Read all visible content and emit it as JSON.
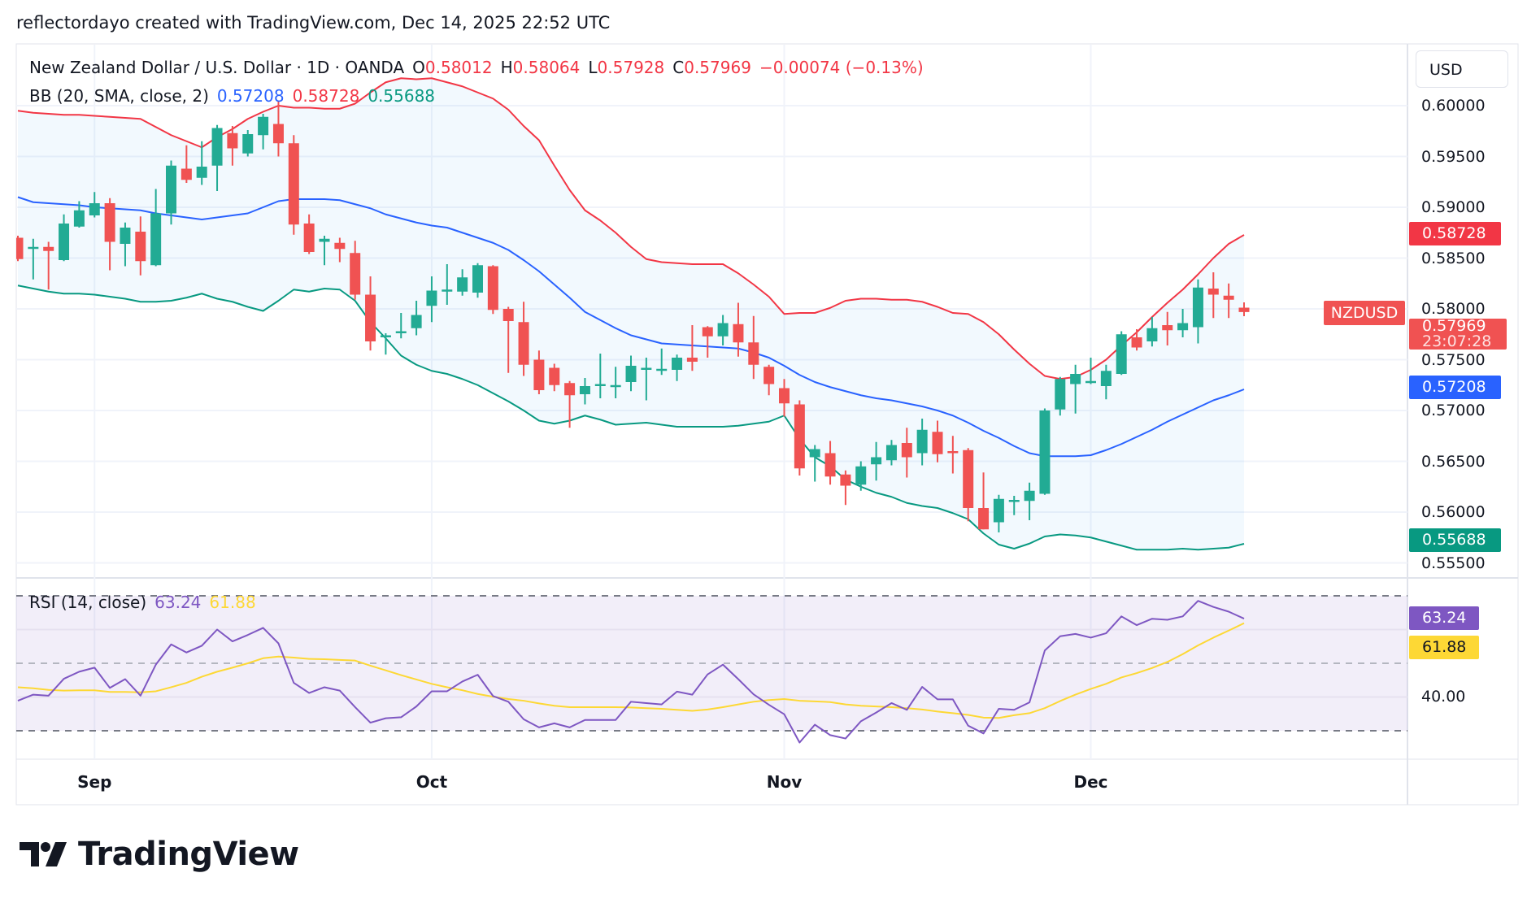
{
  "caption": "reflectordayo created with TradingView.com, Dec 14, 2025 22:52 UTC",
  "legend": {
    "symbol": "New Zealand Dollar / U.S. Dollar · 1D · OANDA",
    "o_label": "O",
    "o": "0.58012",
    "h_label": "H",
    "h": "0.58064",
    "l_label": "L",
    "l": "0.57928",
    "c_label": "C",
    "c": "0.57969",
    "change": "−0.00074 (−0.13%)",
    "bb_title": "BB (20, SMA, close, 2)",
    "bb_basis": "0.57208",
    "bb_upper": "0.58728",
    "bb_lower": "0.55688",
    "rsi_title": "RSI (14, close)",
    "rsi_value": "63.24",
    "rsi_ma": "61.88"
  },
  "price_axis": {
    "currency": "USD",
    "ticks": [
      "0.60000",
      "0.59500",
      "0.59000",
      "0.58500",
      "0.58000",
      "0.57500",
      "0.57000",
      "0.56500",
      "0.56000",
      "0.55500"
    ],
    "symbol_tag": "NZDUSD",
    "last_price": "0.57969",
    "countdown": "23:07:28",
    "upper_badge": "0.58728",
    "basis_badge": "0.57208",
    "lower_badge": "0.55688"
  },
  "rsi_axis": {
    "ticks": [
      "40.00"
    ],
    "rsi_badge": "63.24",
    "ma_badge": "61.88"
  },
  "time_axis": [
    {
      "label": "Sep",
      "bar": 5
    },
    {
      "label": "Oct",
      "bar": 27
    },
    {
      "label": "Nov",
      "bar": 50
    },
    {
      "label": "Dec",
      "bar": 70
    }
  ],
  "brand": "TradingView",
  "colors": {
    "up": "#22ab94",
    "down": "#f05252",
    "bb_upper": "#f23645",
    "bb_basis": "#2962ff",
    "bb_lower": "#089981",
    "rsi": "#7e57c2",
    "rsi_ma": "#fdd835"
  },
  "chart_data": [
    {
      "type": "candlestick",
      "title": "New Zealand Dollar / U.S. Dollar · 1D · OANDA",
      "ylim": [
        0.553,
        0.6035
      ],
      "grid": true,
      "ohlc": [
        [
          0.587,
          0.5872,
          0.5847,
          0.5849
        ],
        [
          0.5859,
          0.5869,
          0.5829,
          0.5861
        ],
        [
          0.5861,
          0.5866,
          0.5819,
          0.5857
        ],
        [
          0.5848,
          0.5893,
          0.5847,
          0.5884
        ],
        [
          0.5881,
          0.5906,
          0.588,
          0.5897
        ],
        [
          0.5892,
          0.5915,
          0.589,
          0.5904
        ],
        [
          0.5904,
          0.5909,
          0.5838,
          0.5866
        ],
        [
          0.5864,
          0.5885,
          0.5842,
          0.588
        ],
        [
          0.5876,
          0.5891,
          0.5833,
          0.5847
        ],
        [
          0.5843,
          0.5918,
          0.5842,
          0.5894
        ],
        [
          0.5894,
          0.5946,
          0.5883,
          0.5941
        ],
        [
          0.5938,
          0.5961,
          0.5924,
          0.5927
        ],
        [
          0.5929,
          0.5965,
          0.5922,
          0.594
        ],
        [
          0.5941,
          0.5981,
          0.5916,
          0.5978
        ],
        [
          0.5973,
          0.598,
          0.5941,
          0.5958
        ],
        [
          0.5953,
          0.5976,
          0.595,
          0.5972
        ],
        [
          0.5971,
          0.5992,
          0.5957,
          0.5989
        ],
        [
          0.5982,
          0.6005,
          0.595,
          0.5963
        ],
        [
          0.5963,
          0.5971,
          0.5873,
          0.5883
        ],
        [
          0.5884,
          0.5893,
          0.5854,
          0.5856
        ],
        [
          0.5866,
          0.5872,
          0.5843,
          0.5869
        ],
        [
          0.5865,
          0.587,
          0.5846,
          0.5859
        ],
        [
          0.5855,
          0.5867,
          0.5809,
          0.5814
        ],
        [
          0.5814,
          0.5832,
          0.5759,
          0.5768
        ],
        [
          0.5772,
          0.5776,
          0.5755,
          0.5774
        ],
        [
          0.5776,
          0.5796,
          0.5771,
          0.5778
        ],
        [
          0.5781,
          0.5808,
          0.5774,
          0.5794
        ],
        [
          0.5803,
          0.5832,
          0.5787,
          0.5818
        ],
        [
          0.5817,
          0.5844,
          0.5804,
          0.5819
        ],
        [
          0.5817,
          0.5839,
          0.5813,
          0.5831
        ],
        [
          0.5816,
          0.5845,
          0.5811,
          0.5843
        ],
        [
          0.5842,
          0.5843,
          0.5795,
          0.5799
        ],
        [
          0.58,
          0.5802,
          0.5737,
          0.5788
        ],
        [
          0.5787,
          0.5807,
          0.5734,
          0.5745
        ],
        [
          0.575,
          0.5759,
          0.5716,
          0.572
        ],
        [
          0.5742,
          0.5746,
          0.5719,
          0.5725
        ],
        [
          0.5727,
          0.5729,
          0.5683,
          0.5715
        ],
        [
          0.5716,
          0.5732,
          0.5706,
          0.5724
        ],
        [
          0.5724,
          0.5756,
          0.5712,
          0.5726
        ],
        [
          0.5723,
          0.5743,
          0.5712,
          0.5725
        ],
        [
          0.5728,
          0.5754,
          0.5719,
          0.5744
        ],
        [
          0.574,
          0.5752,
          0.571,
          0.5742
        ],
        [
          0.5739,
          0.5761,
          0.5735,
          0.5741
        ],
        [
          0.574,
          0.5755,
          0.5729,
          0.5752
        ],
        [
          0.5752,
          0.5784,
          0.5739,
          0.5748
        ],
        [
          0.5782,
          0.5783,
          0.5752,
          0.5773
        ],
        [
          0.5773,
          0.5794,
          0.5764,
          0.5786
        ],
        [
          0.5785,
          0.5806,
          0.5753,
          0.5767
        ],
        [
          0.5767,
          0.5793,
          0.5731,
          0.5745
        ],
        [
          0.5743,
          0.5745,
          0.5715,
          0.5726
        ],
        [
          0.5722,
          0.5731,
          0.5694,
          0.5707
        ],
        [
          0.5706,
          0.571,
          0.5636,
          0.5643
        ],
        [
          0.5654,
          0.5666,
          0.563,
          0.5662
        ],
        [
          0.5658,
          0.567,
          0.5627,
          0.5635
        ],
        [
          0.5637,
          0.5641,
          0.5607,
          0.5626
        ],
        [
          0.5627,
          0.565,
          0.5621,
          0.5645
        ],
        [
          0.5647,
          0.5669,
          0.5631,
          0.5654
        ],
        [
          0.5651,
          0.5671,
          0.5646,
          0.5666
        ],
        [
          0.5668,
          0.5683,
          0.5634,
          0.5654
        ],
        [
          0.5658,
          0.5692,
          0.5646,
          0.5681
        ],
        [
          0.5679,
          0.569,
          0.5649,
          0.5657
        ],
        [
          0.566,
          0.5675,
          0.5638,
          0.5658
        ],
        [
          0.5661,
          0.5663,
          0.5591,
          0.5604
        ],
        [
          0.5604,
          0.5639,
          0.5583,
          0.5583
        ],
        [
          0.559,
          0.5617,
          0.558,
          0.5613
        ],
        [
          0.5611,
          0.5616,
          0.5597,
          0.5612
        ],
        [
          0.5611,
          0.5629,
          0.5592,
          0.5621
        ],
        [
          0.5618,
          0.5702,
          0.5617,
          0.57
        ],
        [
          0.5701,
          0.5733,
          0.5695,
          0.5731
        ],
        [
          0.5726,
          0.5745,
          0.5697,
          0.5736
        ],
        [
          0.5727,
          0.5752,
          0.5726,
          0.5729
        ],
        [
          0.5724,
          0.5745,
          0.5711,
          0.5739
        ],
        [
          0.5736,
          0.5778,
          0.5735,
          0.5775
        ],
        [
          0.5772,
          0.578,
          0.5759,
          0.5762
        ],
        [
          0.5768,
          0.5792,
          0.5763,
          0.5781
        ],
        [
          0.5784,
          0.5797,
          0.5764,
          0.5779
        ],
        [
          0.5779,
          0.58,
          0.5772,
          0.5786
        ],
        [
          0.5782,
          0.5829,
          0.5766,
          0.5821
        ],
        [
          0.582,
          0.5836,
          0.5791,
          0.5814
        ],
        [
          0.5813,
          0.5825,
          0.5791,
          0.5809
        ],
        [
          0.58012,
          0.58064,
          0.57928,
          0.57969
        ]
      ],
      "bb_upper": [
        0.5995,
        0.5993,
        0.5992,
        0.5991,
        0.5991,
        0.599,
        0.5989,
        0.5988,
        0.5987,
        0.5979,
        0.5971,
        0.5965,
        0.5959,
        0.5969,
        0.5977,
        0.5987,
        0.5994,
        0.6,
        0.5998,
        0.5998,
        0.5997,
        0.5997,
        0.6002,
        0.6013,
        0.6023,
        0.6027,
        0.6026,
        0.6027,
        0.6023,
        0.6019,
        0.6013,
        0.6007,
        0.5996,
        0.598,
        0.5966,
        0.5941,
        0.5917,
        0.5897,
        0.5887,
        0.5875,
        0.5861,
        0.5849,
        0.5846,
        0.5845,
        0.5844,
        0.5844,
        0.5844,
        0.5835,
        0.5824,
        0.5812,
        0.5795,
        0.5796,
        0.5796,
        0.5801,
        0.5808,
        0.581,
        0.581,
        0.5809,
        0.5809,
        0.5807,
        0.5802,
        0.5796,
        0.5795,
        0.5787,
        0.5775,
        0.576,
        0.5746,
        0.5734,
        0.5731,
        0.5733,
        0.574,
        0.575,
        0.5764,
        0.5777,
        0.5792,
        0.5806,
        0.5819,
        0.5834,
        0.585,
        0.5864,
        0.58728
      ],
      "bb_basis": [
        0.591,
        0.5905,
        0.5904,
        0.5903,
        0.5902,
        0.59,
        0.5899,
        0.5898,
        0.5897,
        0.5894,
        0.5892,
        0.589,
        0.5888,
        0.589,
        0.5892,
        0.5894,
        0.59,
        0.5906,
        0.5908,
        0.5908,
        0.5908,
        0.5907,
        0.5903,
        0.5899,
        0.5893,
        0.5889,
        0.5885,
        0.5882,
        0.588,
        0.5875,
        0.587,
        0.5865,
        0.5858,
        0.5848,
        0.5837,
        0.5824,
        0.5811,
        0.5797,
        0.5789,
        0.5781,
        0.5774,
        0.577,
        0.5766,
        0.5765,
        0.5764,
        0.5763,
        0.5762,
        0.5761,
        0.5757,
        0.5752,
        0.5744,
        0.5735,
        0.5728,
        0.5723,
        0.5719,
        0.5715,
        0.5712,
        0.571,
        0.5707,
        0.5704,
        0.57,
        0.5695,
        0.5688,
        0.568,
        0.5673,
        0.5665,
        0.5658,
        0.5655,
        0.5655,
        0.5655,
        0.5656,
        0.5661,
        0.5667,
        0.5674,
        0.5681,
        0.5689,
        0.5696,
        0.5703,
        0.571,
        0.5715,
        0.57208
      ],
      "bb_lower": [
        0.5823,
        0.582,
        0.5817,
        0.5815,
        0.5815,
        0.5814,
        0.5812,
        0.581,
        0.5807,
        0.5807,
        0.5808,
        0.5811,
        0.5815,
        0.581,
        0.5807,
        0.5802,
        0.5798,
        0.5808,
        0.5819,
        0.5817,
        0.582,
        0.5819,
        0.5808,
        0.5787,
        0.5771,
        0.5754,
        0.5745,
        0.5739,
        0.5736,
        0.5731,
        0.5725,
        0.5717,
        0.5709,
        0.57,
        0.569,
        0.5687,
        0.569,
        0.5695,
        0.5691,
        0.5686,
        0.5687,
        0.5688,
        0.5686,
        0.5684,
        0.5684,
        0.5684,
        0.5684,
        0.5685,
        0.5687,
        0.5689,
        0.5695,
        0.5672,
        0.5654,
        0.5645,
        0.5632,
        0.5625,
        0.5619,
        0.5615,
        0.5609,
        0.5606,
        0.5604,
        0.5599,
        0.5593,
        0.5579,
        0.5568,
        0.5564,
        0.5569,
        0.5576,
        0.5578,
        0.5577,
        0.5575,
        0.5571,
        0.5567,
        0.5563,
        0.5563,
        0.5563,
        0.5564,
        0.5563,
        0.5564,
        0.5565,
        0.55688
      ]
    },
    {
      "type": "line",
      "title": "RSI (14, close)",
      "ylim": [
        20,
        80
      ],
      "bands": [
        30,
        50,
        70
      ],
      "series": [
        {
          "name": "RSI",
          "values": [
            38.9,
            40.7,
            40.4,
            45.4,
            47.5,
            48.7,
            42.7,
            45.3,
            40.4,
            49.6,
            55.6,
            53.2,
            55.2,
            60.0,
            56.5,
            58.4,
            60.5,
            55.9,
            44.2,
            41.2,
            42.9,
            41.9,
            37.0,
            32.4,
            33.7,
            34.0,
            37.2,
            41.7,
            41.7,
            44.6,
            46.6,
            40.3,
            38.6,
            33.4,
            31.0,
            32.2,
            31.0,
            33.2,
            33.2,
            33.2,
            38.6,
            38.2,
            37.8,
            41.6,
            40.7,
            46.7,
            49.6,
            45.3,
            40.8,
            37.7,
            34.9,
            26.5,
            31.8,
            28.7,
            27.7,
            32.8,
            35.4,
            38.2,
            36.2,
            43.0,
            39.3,
            39.3,
            31.5,
            29.2,
            36.5,
            36.2,
            38.4,
            53.8,
            58.0,
            58.7,
            57.6,
            58.9,
            63.9,
            61.3,
            63.2,
            62.9,
            63.9,
            68.5,
            66.7,
            65.3,
            63.24
          ]
        },
        {
          "name": "RSI-based MA",
          "values": [
            42.9,
            42.6,
            42.1,
            41.9,
            42.0,
            42.0,
            41.5,
            41.5,
            41.4,
            41.7,
            42.9,
            44.2,
            46.0,
            47.5,
            48.7,
            50.0,
            51.5,
            52.0,
            51.7,
            51.3,
            51.2,
            51.0,
            50.8,
            49.3,
            47.9,
            46.5,
            45.2,
            43.9,
            42.9,
            42.0,
            40.9,
            40.1,
            39.4,
            38.9,
            38.1,
            37.4,
            37.0,
            37.0,
            37.0,
            37.0,
            36.9,
            36.7,
            36.5,
            36.2,
            35.9,
            36.3,
            37.0,
            37.8,
            38.6,
            39.1,
            39.4,
            38.9,
            38.7,
            38.5,
            37.8,
            37.4,
            37.2,
            37.0,
            36.7,
            36.3,
            35.7,
            35.2,
            34.7,
            33.9,
            33.8,
            34.6,
            35.2,
            36.7,
            38.8,
            40.7,
            42.4,
            43.9,
            45.8,
            47.1,
            48.6,
            50.4,
            52.7,
            55.3,
            57.6,
            59.7,
            61.88
          ]
        }
      ]
    }
  ]
}
